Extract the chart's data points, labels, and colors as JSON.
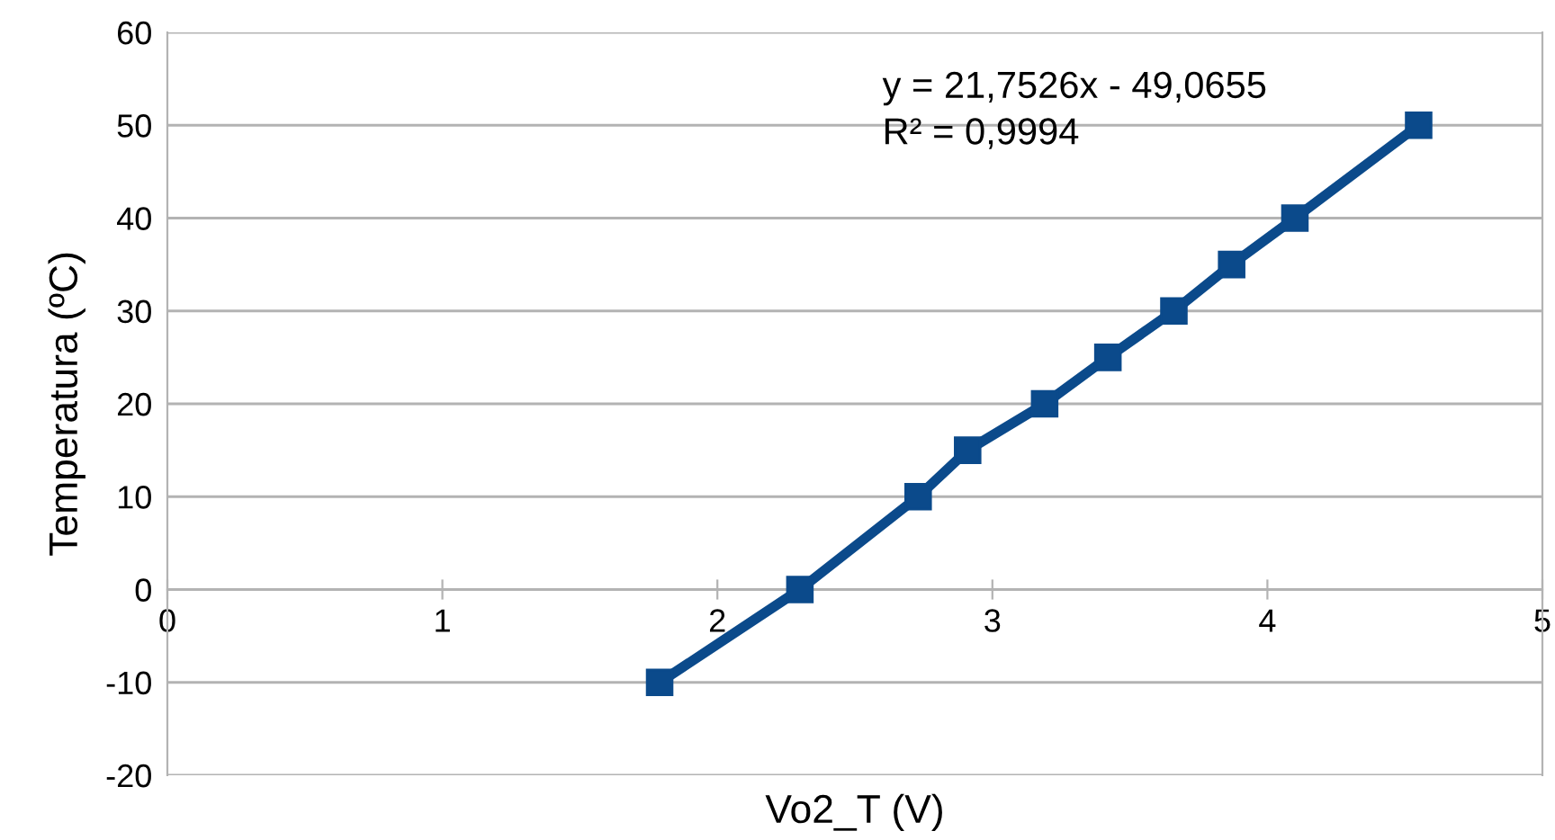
{
  "chart_data": {
    "type": "line",
    "xlabel": "Vo2_T (V)",
    "ylabel": "Temperatura (ºC)",
    "series": [
      {
        "color": "#0b4a8b",
        "x": [
          1.79,
          2.3,
          2.73,
          2.91,
          3.19,
          3.42,
          3.66,
          3.87,
          4.1,
          4.55
        ],
        "values": [
          -10,
          0,
          10,
          15,
          20,
          25,
          30,
          35,
          40,
          50
        ]
      }
    ],
    "xlim": [
      0,
      5
    ],
    "xticks": [
      0,
      1,
      2,
      3,
      4,
      5
    ],
    "ylim": [
      -20,
      60
    ],
    "yticks": [
      -20,
      -10,
      0,
      10,
      20,
      30,
      40,
      50,
      60
    ],
    "grid": "y",
    "marker": "square",
    "line_style": "solid",
    "annotations": [
      "y = 21,7526x - 49,0655",
      "R² = 0,9994"
    ]
  }
}
